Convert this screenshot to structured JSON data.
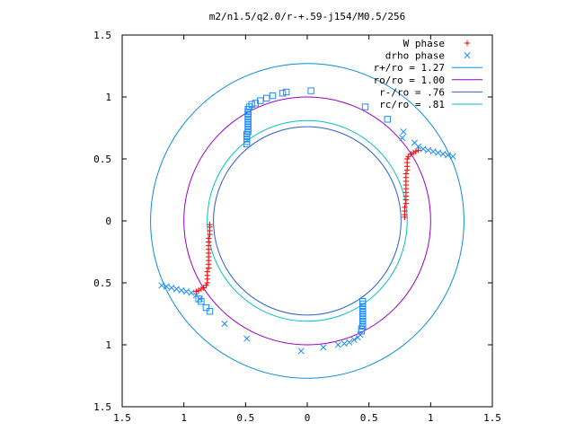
{
  "chart_data": {
    "type": "scatter",
    "title": "m2/n1.5/q2.0/r-+.59-j154/M0.5/256",
    "xlim": [
      -1.5,
      1.5
    ],
    "ylim": [
      -1.5,
      1.5
    ],
    "x_ticks": [
      {
        "value": -1.5,
        "label": "1.5"
      },
      {
        "value": -1.0,
        "label": "1"
      },
      {
        "value": -0.5,
        "label": "0.5"
      },
      {
        "value": 0,
        "label": "0"
      },
      {
        "value": 0.5,
        "label": "0.5"
      },
      {
        "value": 1.0,
        "label": "1"
      },
      {
        "value": 1.5,
        "label": "1.5"
      }
    ],
    "y_ticks": [
      {
        "value": -1.5,
        "label": "1.5"
      },
      {
        "value": -1.0,
        "label": "1"
      },
      {
        "value": -0.5,
        "label": "0.5"
      },
      {
        "value": 0,
        "label": "0"
      },
      {
        "value": 0.5,
        "label": "0.5"
      },
      {
        "value": 1.0,
        "label": "1"
      },
      {
        "value": 1.5,
        "label": "1.5"
      }
    ],
    "grid": false,
    "legend_position": "top-right",
    "circles": [
      {
        "name": "r+/ro = 1.27",
        "radius": 1.27,
        "color": "#0a8ed8"
      },
      {
        "name": "ro/ro = 1.00",
        "radius": 1.0,
        "color": "#9a00c4"
      },
      {
        "name": "r-/ro = .76",
        "radius": 0.76,
        "color": "#2b60c8"
      },
      {
        "name": "rc/ro = .81",
        "radius": 0.81,
        "color": "#00c0c8"
      }
    ],
    "series": [
      {
        "name": "W phase",
        "marker": "plus",
        "color": "#ff0000",
        "points": [
          [
            -0.79,
            -0.03
          ],
          [
            -0.79,
            -0.05
          ],
          [
            -0.79,
            -0.08
          ],
          [
            -0.79,
            -0.11
          ],
          [
            -0.8,
            -0.14
          ],
          [
            -0.8,
            -0.17
          ],
          [
            -0.8,
            -0.2
          ],
          [
            -0.8,
            -0.23
          ],
          [
            -0.8,
            -0.26
          ],
          [
            -0.8,
            -0.29
          ],
          [
            -0.8,
            -0.32
          ],
          [
            -0.8,
            -0.35
          ],
          [
            -0.8,
            -0.38
          ],
          [
            -0.81,
            -0.41
          ],
          [
            -0.81,
            -0.44
          ],
          [
            -0.81,
            -0.47
          ],
          [
            -0.81,
            -0.5
          ],
          [
            -0.82,
            -0.52
          ],
          [
            -0.84,
            -0.54
          ],
          [
            -0.86,
            -0.55
          ],
          [
            -0.88,
            -0.56
          ],
          [
            -0.9,
            -0.57
          ],
          [
            0.79,
            0.03
          ],
          [
            0.79,
            0.05
          ],
          [
            0.79,
            0.08
          ],
          [
            0.79,
            0.11
          ],
          [
            0.8,
            0.14
          ],
          [
            0.8,
            0.17
          ],
          [
            0.8,
            0.2
          ],
          [
            0.8,
            0.23
          ],
          [
            0.8,
            0.26
          ],
          [
            0.8,
            0.29
          ],
          [
            0.8,
            0.32
          ],
          [
            0.8,
            0.35
          ],
          [
            0.8,
            0.38
          ],
          [
            0.81,
            0.41
          ],
          [
            0.81,
            0.44
          ],
          [
            0.81,
            0.47
          ],
          [
            0.81,
            0.5
          ],
          [
            0.82,
            0.52
          ],
          [
            0.84,
            0.54
          ],
          [
            0.86,
            0.55
          ],
          [
            0.88,
            0.56
          ],
          [
            0.9,
            0.57
          ]
        ]
      },
      {
        "name": "drho phase",
        "marker": "cross",
        "color": "#1a8cff",
        "points": [
          [
            -1.18,
            -0.52
          ],
          [
            -1.14,
            -0.53
          ],
          [
            -1.1,
            -0.54
          ],
          [
            -1.06,
            -0.55
          ],
          [
            -1.02,
            -0.56
          ],
          [
            -0.98,
            -0.57
          ],
          [
            -0.94,
            -0.58
          ],
          [
            -0.9,
            -0.6
          ],
          [
            -0.87,
            -0.63
          ],
          [
            -0.67,
            -0.83
          ],
          [
            -0.49,
            -0.95
          ],
          [
            -0.05,
            -1.05
          ],
          [
            1.18,
            0.52
          ],
          [
            1.14,
            0.53
          ],
          [
            1.1,
            0.54
          ],
          [
            1.06,
            0.55
          ],
          [
            1.02,
            0.56
          ],
          [
            0.98,
            0.57
          ],
          [
            0.94,
            0.58
          ],
          [
            0.9,
            0.6
          ],
          [
            0.87,
            0.63
          ],
          [
            0.78,
            0.72
          ],
          [
            0.77,
            0.67
          ],
          [
            0.13,
            -1.02
          ],
          [
            0.25,
            -1.0
          ],
          [
            0.3,
            -0.99
          ],
          [
            0.34,
            -0.98
          ],
          [
            0.38,
            -0.96
          ],
          [
            0.41,
            -0.94
          ],
          [
            0.43,
            -0.92
          ]
        ]
      },
      {
        "name": "drho phase (squares)",
        "marker": "square",
        "color": "#1a8cff",
        "points": [
          [
            -0.49,
            0.62
          ],
          [
            -0.49,
            0.64
          ],
          [
            -0.49,
            0.66
          ],
          [
            -0.49,
            0.68
          ],
          [
            -0.49,
            0.7
          ],
          [
            -0.48,
            0.72
          ],
          [
            -0.48,
            0.74
          ],
          [
            -0.48,
            0.76
          ],
          [
            -0.48,
            0.78
          ],
          [
            -0.48,
            0.8
          ],
          [
            -0.48,
            0.82
          ],
          [
            -0.48,
            0.84
          ],
          [
            -0.48,
            0.86
          ],
          [
            -0.48,
            0.88
          ],
          [
            -0.48,
            0.9
          ],
          [
            -0.47,
            0.92
          ],
          [
            -0.45,
            0.94
          ],
          [
            -0.42,
            0.95
          ],
          [
            -0.38,
            0.97
          ],
          [
            -0.33,
            0.99
          ],
          [
            -0.28,
            1.01
          ],
          [
            -0.2,
            1.03
          ],
          [
            -0.17,
            1.04
          ],
          [
            0.03,
            1.05
          ],
          [
            0.47,
            0.92
          ],
          [
            0.65,
            0.82
          ],
          [
            0.45,
            -0.65
          ],
          [
            0.45,
            -0.67
          ],
          [
            0.45,
            -0.69
          ],
          [
            0.45,
            -0.71
          ],
          [
            0.45,
            -0.73
          ],
          [
            0.45,
            -0.75
          ],
          [
            0.45,
            -0.77
          ],
          [
            0.45,
            -0.79
          ],
          [
            0.45,
            -0.81
          ],
          [
            0.45,
            -0.83
          ],
          [
            0.45,
            -0.85
          ],
          [
            0.44,
            -0.87
          ],
          [
            0.44,
            -0.89
          ],
          [
            -0.88,
            -0.63
          ],
          [
            -0.86,
            -0.65
          ],
          [
            -0.82,
            -0.7
          ],
          [
            -0.79,
            -0.73
          ]
        ]
      }
    ],
    "legend": [
      {
        "label": "W phase",
        "kind": "marker",
        "marker": "plus",
        "color": "#ff0000"
      },
      {
        "label": "drho phase",
        "kind": "marker",
        "marker": "cross",
        "color": "#1a8cff"
      },
      {
        "label": "r+/ro = 1.27",
        "kind": "line",
        "color": "#0a8ed8"
      },
      {
        "label": "ro/ro = 1.00",
        "kind": "line",
        "color": "#9a00c4"
      },
      {
        "label": "r-/ro = .76",
        "kind": "line",
        "color": "#2b60c8"
      },
      {
        "label": "rc/ro = .81",
        "kind": "line",
        "color": "#00c0c8"
      }
    ]
  }
}
